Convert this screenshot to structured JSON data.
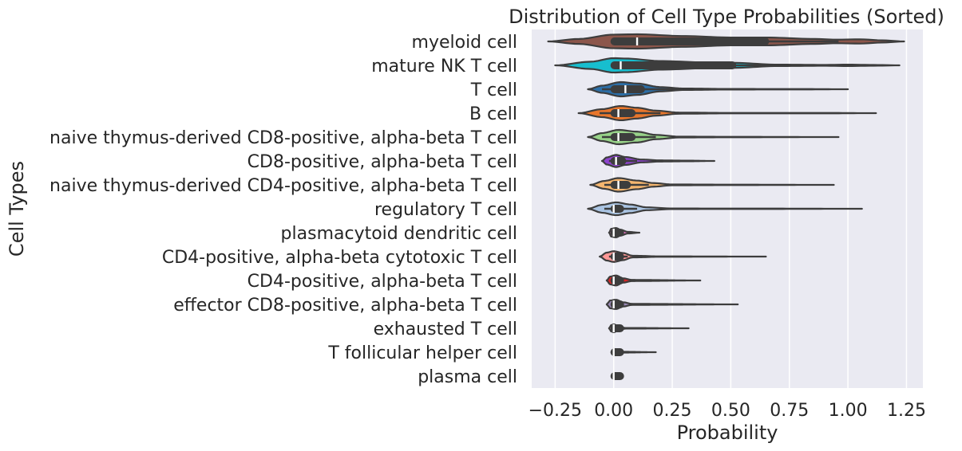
{
  "chart_data": {
    "type": "violin",
    "title": "Distribution of Cell Type Probabilities (Sorted)",
    "xlabel": "Probability",
    "ylabel": "Cell Types",
    "xlim": [
      -0.35,
      1.32
    ],
    "xticks": [
      -0.25,
      0.0,
      0.25,
      0.5,
      0.75,
      1.0,
      1.25
    ],
    "xtick_labels": [
      "−0.25",
      "0.00",
      "0.25",
      "0.50",
      "0.75",
      "1.00",
      "1.25"
    ],
    "grid": true,
    "categories": [
      {
        "name": "myeloid cell",
        "color": "#8c564b",
        "min": -0.28,
        "max": 1.24,
        "q1": 0.0,
        "median": 0.1,
        "q3": 0.65,
        "whisker_lo": 0.0,
        "whisker_hi": 0.96,
        "width": 0.6,
        "profile": [
          [
            -0.28,
            0.0
          ],
          [
            -0.15,
            0.35
          ],
          [
            0.0,
            0.95
          ],
          [
            0.1,
            1.0
          ],
          [
            0.3,
            0.75
          ],
          [
            0.5,
            0.55
          ],
          [
            0.65,
            0.55
          ],
          [
            0.85,
            0.35
          ],
          [
            0.95,
            0.25
          ],
          [
            1.05,
            0.3
          ],
          [
            1.15,
            0.15
          ],
          [
            1.24,
            0.0
          ]
        ]
      },
      {
        "name": "mature NK T cell",
        "color": "#17becf",
        "min": -0.25,
        "max": 1.22,
        "q1": 0.0,
        "median": 0.03,
        "q3": 0.51,
        "whisker_lo": 0.0,
        "whisker_hi": 1.0,
        "width": 0.6,
        "profile": [
          [
            -0.25,
            0.0
          ],
          [
            -0.1,
            0.5
          ],
          [
            0.0,
            1.0
          ],
          [
            0.05,
            0.95
          ],
          [
            0.2,
            0.6
          ],
          [
            0.4,
            0.4
          ],
          [
            0.51,
            0.35
          ],
          [
            0.7,
            0.1
          ],
          [
            0.9,
            0.06
          ],
          [
            1.0,
            0.1
          ],
          [
            1.1,
            0.06
          ],
          [
            1.22,
            0.0
          ]
        ]
      },
      {
        "name": "T cell",
        "color": "#2c6fa8",
        "min": -0.11,
        "max": 1.0,
        "q1": 0.0,
        "median": 0.05,
        "q3": 0.12,
        "whisker_lo": -0.05,
        "whisker_hi": 0.3,
        "width": 0.6,
        "profile": [
          [
            -0.11,
            0.0
          ],
          [
            -0.05,
            0.5
          ],
          [
            0.03,
            1.0
          ],
          [
            0.1,
            0.8
          ],
          [
            0.2,
            0.3
          ],
          [
            0.3,
            0.1
          ],
          [
            0.5,
            0.04
          ],
          [
            0.8,
            0.03
          ],
          [
            1.0,
            0.0
          ]
        ]
      },
      {
        "name": "B cell",
        "color": "#e8762c",
        "min": -0.15,
        "max": 1.12,
        "q1": 0.0,
        "median": 0.02,
        "q3": 0.08,
        "whisker_lo": -0.06,
        "whisker_hi": 0.2,
        "width": 0.6,
        "profile": [
          [
            -0.15,
            0.0
          ],
          [
            -0.05,
            0.55
          ],
          [
            0.03,
            1.0
          ],
          [
            0.1,
            0.75
          ],
          [
            0.18,
            0.35
          ],
          [
            0.28,
            0.08
          ],
          [
            0.5,
            0.03
          ],
          [
            0.9,
            0.03
          ],
          [
            1.12,
            0.0
          ]
        ]
      },
      {
        "name": "naive thymus-derived CD8-positive, alpha-beta T cell",
        "color": "#98d389",
        "min": -0.11,
        "max": 0.96,
        "q1": 0.0,
        "median": 0.02,
        "q3": 0.08,
        "whisker_lo": -0.05,
        "whisker_hi": 0.18,
        "width": 0.6,
        "profile": [
          [
            -0.11,
            0.0
          ],
          [
            -0.05,
            0.55
          ],
          [
            0.02,
            1.0
          ],
          [
            0.1,
            0.75
          ],
          [
            0.18,
            0.3
          ],
          [
            0.28,
            0.06
          ],
          [
            0.5,
            0.03
          ],
          [
            0.96,
            0.0
          ]
        ]
      },
      {
        "name": "CD8-positive, alpha-beta T cell",
        "color": "#8e44cf",
        "min": -0.05,
        "max": 0.43,
        "q1": 0.0,
        "median": 0.01,
        "q3": 0.04,
        "whisker_lo": -0.02,
        "whisker_hi": 0.1,
        "width": 0.6,
        "profile": [
          [
            -0.05,
            0.0
          ],
          [
            -0.03,
            0.5
          ],
          [
            0.01,
            0.85
          ],
          [
            0.05,
            0.55
          ],
          [
            0.12,
            0.2
          ],
          [
            0.2,
            0.08
          ],
          [
            0.3,
            0.05
          ],
          [
            0.43,
            0.0
          ]
        ]
      },
      {
        "name": "naive thymus-derived CD4-positive, alpha-beta T cell",
        "color": "#f5b66f",
        "min": -0.1,
        "max": 0.94,
        "q1": 0.0,
        "median": 0.02,
        "q3": 0.06,
        "whisker_lo": -0.04,
        "whisker_hi": 0.15,
        "width": 0.6,
        "profile": [
          [
            -0.1,
            0.0
          ],
          [
            -0.04,
            0.55
          ],
          [
            0.02,
            0.95
          ],
          [
            0.1,
            0.6
          ],
          [
            0.17,
            0.25
          ],
          [
            0.25,
            0.06
          ],
          [
            0.5,
            0.03
          ],
          [
            0.94,
            0.0
          ]
        ]
      },
      {
        "name": "regulatory T cell",
        "color": "#aac4e3",
        "min": -0.11,
        "max": 1.06,
        "q1": 0.0,
        "median": 0.0,
        "q3": 0.03,
        "whisker_lo": -0.04,
        "whisker_hi": 0.1,
        "width": 0.6,
        "profile": [
          [
            -0.11,
            0.0
          ],
          [
            -0.05,
            0.55
          ],
          [
            0.01,
            0.9
          ],
          [
            0.07,
            0.6
          ],
          [
            0.14,
            0.2
          ],
          [
            0.25,
            0.04
          ],
          [
            0.6,
            0.03
          ],
          [
            1.06,
            0.0
          ]
        ]
      },
      {
        "name": "plasmacytoid dendritic cell",
        "color": "#e377c2",
        "min": -0.02,
        "max": 0.11,
        "q1": 0.0,
        "median": 0.0,
        "q3": 0.01,
        "whisker_lo": 0.0,
        "whisker_hi": 0.03,
        "width": 0.6,
        "profile": [
          [
            -0.02,
            0.0
          ],
          [
            -0.01,
            0.55
          ],
          [
            0.01,
            0.65
          ],
          [
            0.03,
            0.4
          ],
          [
            0.06,
            0.12
          ],
          [
            0.11,
            0.0
          ]
        ]
      },
      {
        "name": "CD4-positive, alpha-beta cytotoxic T cell",
        "color": "#ff9896",
        "min": -0.06,
        "max": 0.65,
        "q1": 0.0,
        "median": 0.0,
        "q3": 0.02,
        "whisker_lo": -0.02,
        "whisker_hi": 0.06,
        "width": 0.6,
        "profile": [
          [
            -0.06,
            0.0
          ],
          [
            -0.03,
            0.55
          ],
          [
            0.0,
            0.75
          ],
          [
            0.04,
            0.5
          ],
          [
            0.08,
            0.12
          ],
          [
            0.2,
            0.03
          ],
          [
            0.65,
            0.0
          ]
        ]
      },
      {
        "name": "CD4-positive, alpha-beta T cell",
        "color": "#d62728",
        "min": -0.03,
        "max": 0.37,
        "q1": 0.0,
        "median": 0.0,
        "q3": 0.01,
        "whisker_lo": 0.0,
        "whisker_hi": 0.04,
        "width": 0.6,
        "profile": [
          [
            -0.03,
            0.0
          ],
          [
            -0.015,
            0.55
          ],
          [
            0.01,
            0.7
          ],
          [
            0.04,
            0.3
          ],
          [
            0.08,
            0.08
          ],
          [
            0.37,
            0.0
          ]
        ]
      },
      {
        "name": "effector CD8-positive, alpha-beta T cell",
        "color": "#9a89b5",
        "min": -0.03,
        "max": 0.53,
        "q1": 0.0,
        "median": 0.0,
        "q3": 0.01,
        "whisker_lo": 0.0,
        "whisker_hi": 0.04,
        "width": 0.6,
        "profile": [
          [
            -0.03,
            0.0
          ],
          [
            -0.015,
            0.55
          ],
          [
            0.01,
            0.65
          ],
          [
            0.04,
            0.3
          ],
          [
            0.08,
            0.07
          ],
          [
            0.53,
            0.0
          ]
        ]
      },
      {
        "name": "exhausted T cell",
        "color": "#f7b6d2",
        "min": -0.02,
        "max": 0.32,
        "q1": 0.0,
        "median": 0.0,
        "q3": 0.0,
        "whisker_lo": 0.0,
        "whisker_hi": 0.02,
        "width": 0.6,
        "profile": [
          [
            -0.02,
            0.0
          ],
          [
            -0.01,
            0.45
          ],
          [
            0.0,
            0.55
          ],
          [
            0.02,
            0.3
          ],
          [
            0.05,
            0.05
          ],
          [
            0.32,
            0.0
          ]
        ]
      },
      {
        "name": "T follicular helper cell",
        "color": "#7f7f7f",
        "min": -0.01,
        "max": 0.18,
        "q1": 0.0,
        "median": 0.0,
        "q3": 0.0,
        "whisker_lo": 0.0,
        "whisker_hi": 0.01,
        "width": 0.6,
        "profile": [
          [
            -0.01,
            0.0
          ],
          [
            0.0,
            0.45
          ],
          [
            0.01,
            0.3
          ],
          [
            0.03,
            0.06
          ],
          [
            0.18,
            0.0
          ]
        ]
      },
      {
        "name": "plasma cell",
        "color": "#c7c7c7",
        "min": -0.005,
        "max": 0.03,
        "q1": 0.0,
        "median": 0.0,
        "q3": 0.0,
        "whisker_lo": 0.0,
        "whisker_hi": 0.005,
        "width": 0.6,
        "profile": [
          [
            -0.005,
            0.0
          ],
          [
            0.0,
            0.3
          ],
          [
            0.005,
            0.15
          ],
          [
            0.03,
            0.0
          ]
        ]
      }
    ]
  }
}
